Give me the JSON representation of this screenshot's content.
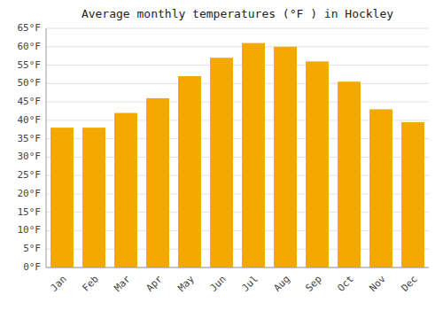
{
  "chart_data": {
    "type": "bar",
    "title": "Average monthly temperatures (°F ) in Hockley",
    "categories": [
      "Jan",
      "Feb",
      "Mar",
      "Apr",
      "May",
      "Jun",
      "Jul",
      "Aug",
      "Sep",
      "Oct",
      "Nov",
      "Dec"
    ],
    "values": [
      38,
      38,
      42,
      46,
      52,
      57,
      61,
      60,
      56,
      50.5,
      43,
      39.5
    ],
    "color": "#F5A800",
    "ylim": [
      0,
      65
    ],
    "yticks": [
      {
        "value": 0,
        "label": "0°F"
      },
      {
        "value": 5,
        "label": "5°F"
      },
      {
        "value": 10,
        "label": "10°F"
      },
      {
        "value": 15,
        "label": "15°F"
      },
      {
        "value": 20,
        "label": "20°F"
      },
      {
        "value": 25,
        "label": "25°F"
      },
      {
        "value": 30,
        "label": "30°F"
      },
      {
        "value": 35,
        "label": "35°F"
      },
      {
        "value": 40,
        "label": "40°F"
      },
      {
        "value": 45,
        "label": "45°F"
      },
      {
        "value": 50,
        "label": "50°F"
      },
      {
        "value": 55,
        "label": "55°F"
      },
      {
        "value": 60,
        "label": "60°F"
      },
      {
        "value": 65,
        "label": "65°F"
      }
    ],
    "grid": true
  }
}
